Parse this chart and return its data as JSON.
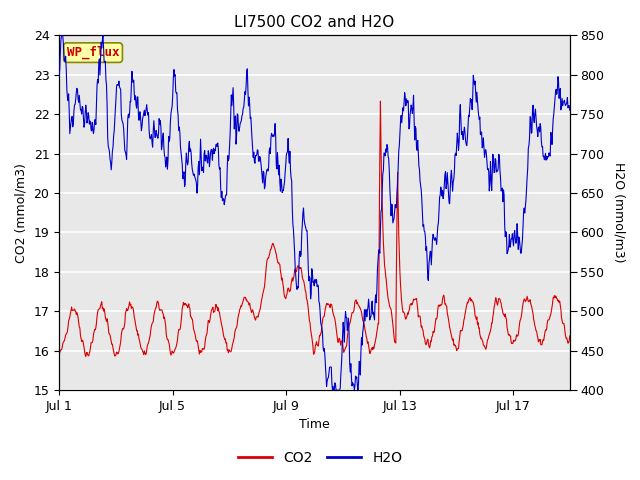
{
  "title": "LI7500 CO2 and H2O",
  "xlabel": "Time",
  "ylabel_left": "CO2 (mmol/m3)",
  "ylabel_right": "H2O (mmol/m3)",
  "co2_ylim": [
    15.0,
    24.0
  ],
  "h2o_ylim": [
    400,
    850
  ],
  "co2_yticks": [
    15.0,
    16.0,
    17.0,
    18.0,
    19.0,
    20.0,
    21.0,
    22.0,
    23.0,
    24.0
  ],
  "h2o_yticks": [
    400,
    450,
    500,
    550,
    600,
    650,
    700,
    750,
    800,
    850
  ],
  "xtick_labels": [
    "Jul 1",
    "Jul 5",
    "Jul 9",
    "Jul 13",
    "Jul 17"
  ],
  "xtick_positions": [
    0,
    4,
    8,
    12,
    16
  ],
  "annotation_text": "WP_flux",
  "annotation_color": "#cc0000",
  "annotation_bg": "#ffffaa",
  "annotation_border": "#888800",
  "plot_bg": "#e8e8e8",
  "grid_color": "#ffffff",
  "co2_color": "#dd0000",
  "h2o_color": "#0000cc",
  "title_fontsize": 11,
  "axis_fontsize": 9,
  "tick_fontsize": 9,
  "legend_fontsize": 10,
  "total_days": 18,
  "seed": 42
}
